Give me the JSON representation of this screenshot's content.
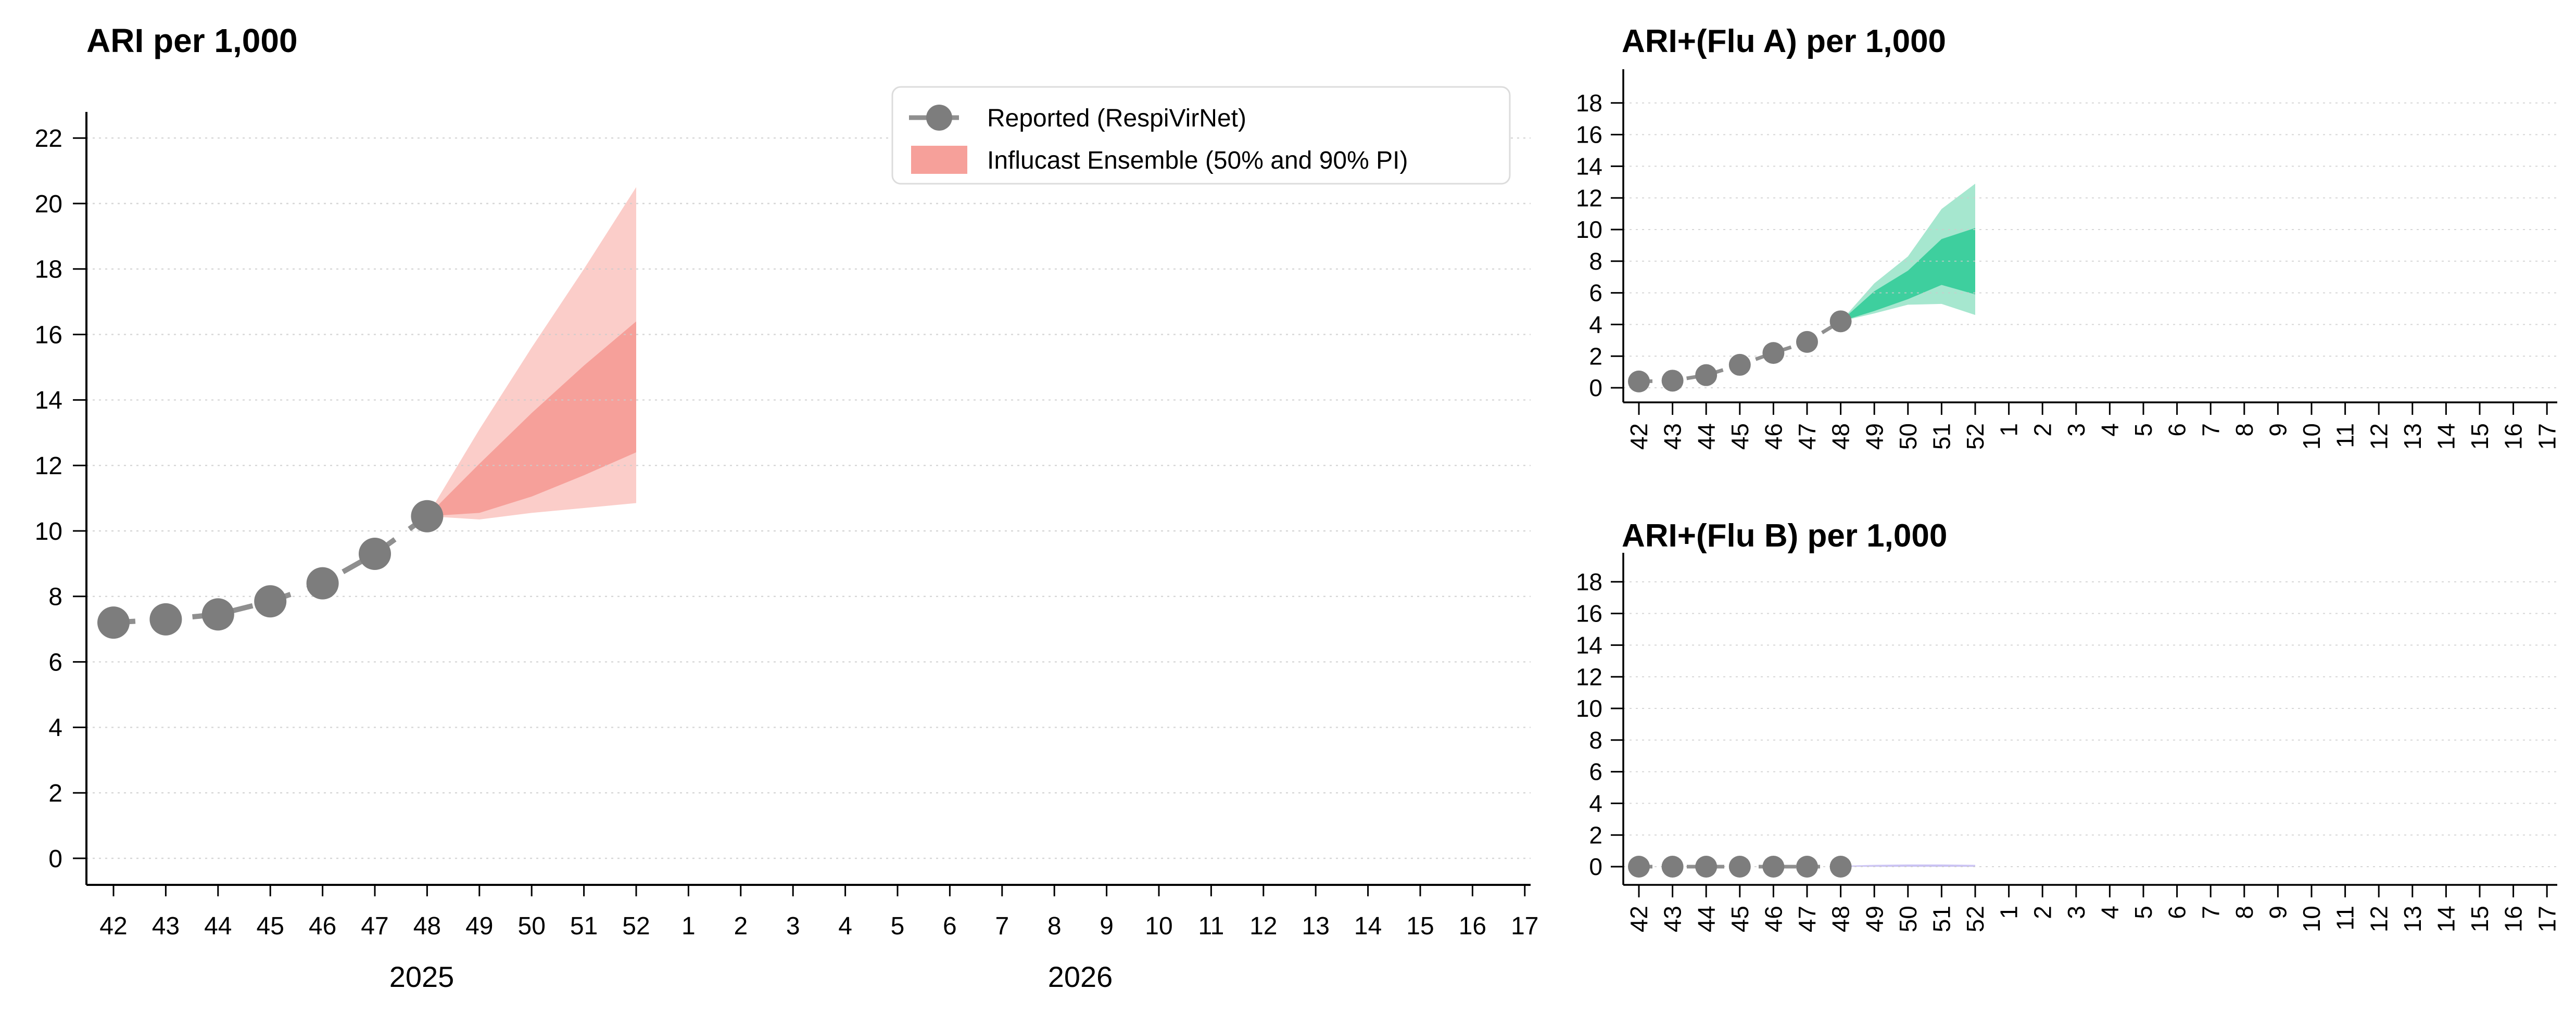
{
  "figure": {
    "background": "#ffffff",
    "axis_color": "#000000",
    "grid_color": "#cccccc",
    "reported_point_color": "#7d7d7d",
    "reported_line_color": "#8f8f8f",
    "legend": {
      "reported_label": "Reported (RespiVirNet)",
      "ensemble_label": "Influcast Ensemble (50% and 90% PI)",
      "border_color": "#dcdcdc",
      "swatch_color": "#f6a09a"
    }
  },
  "chart_data": [
    {
      "type": "line",
      "title": "ARI per 1,000",
      "categories": [
        "42",
        "43",
        "44",
        "45",
        "46",
        "47",
        "48",
        "49",
        "50",
        "51",
        "52",
        "1",
        "2",
        "3",
        "4",
        "5",
        "6",
        "7",
        "8",
        "9",
        "10",
        "11",
        "12",
        "13",
        "14",
        "15",
        "16",
        "17"
      ],
      "ylim": [
        0,
        22
      ],
      "y_tick_step": 2,
      "grid": true,
      "legend_position": "top-right",
      "year_labels": [
        {
          "text": "2025",
          "anchor_week": "48"
        },
        {
          "text": "2026",
          "anchor_week": "9"
        }
      ],
      "reported": {
        "name": "Reported (RespiVirNet)",
        "weeks": [
          "42",
          "43",
          "44",
          "45",
          "46",
          "47",
          "48"
        ],
        "values": [
          7.2,
          7.3,
          7.45,
          7.85,
          8.4,
          9.3,
          10.45
        ]
      },
      "forecast": {
        "name": "Influcast Ensemble",
        "weeks": [
          "48",
          "49",
          "50",
          "51",
          "52"
        ],
        "pi90": {
          "lower": [
            10.45,
            10.35,
            10.55,
            10.7,
            10.85
          ],
          "upper": [
            10.45,
            13.1,
            15.6,
            18.0,
            20.5
          ]
        },
        "pi50": {
          "lower": [
            10.45,
            10.55,
            11.05,
            11.7,
            12.4
          ],
          "upper": [
            10.45,
            12.05,
            13.6,
            15.05,
            16.4
          ]
        }
      },
      "colors": {
        "band50": "#f6a09a",
        "band90": "#fbcdc9"
      }
    },
    {
      "type": "line",
      "title": "ARI+(Flu A) per 1,000",
      "categories": [
        "42",
        "43",
        "44",
        "45",
        "46",
        "47",
        "48",
        "49",
        "50",
        "51",
        "52",
        "1",
        "2",
        "3",
        "4",
        "5",
        "6",
        "7",
        "8",
        "9",
        "10",
        "11",
        "12",
        "13",
        "14",
        "15",
        "16",
        "17"
      ],
      "ylim": [
        0,
        18
      ],
      "y_tick_step": 2,
      "grid": true,
      "x_labels_rotated": true,
      "reported": {
        "name": "Reported (RespiVirNet)",
        "weeks": [
          "42",
          "43",
          "44",
          "45",
          "46",
          "47",
          "48"
        ],
        "values": [
          0.4,
          0.45,
          0.8,
          1.45,
          2.2,
          2.9,
          4.2
        ]
      },
      "forecast": {
        "name": "Influcast Ensemble",
        "weeks": [
          "48",
          "49",
          "50",
          "51",
          "52"
        ],
        "pi90": {
          "lower": [
            4.2,
            4.7,
            5.25,
            5.3,
            4.6
          ],
          "upper": [
            4.2,
            6.6,
            8.3,
            11.3,
            12.9
          ]
        },
        "pi50": {
          "lower": [
            4.2,
            4.85,
            5.6,
            6.5,
            5.9
          ],
          "upper": [
            4.2,
            6.1,
            7.4,
            9.4,
            10.1
          ]
        }
      },
      "colors": {
        "band50": "#3ecf9e",
        "band90": "#a6e7cf"
      }
    },
    {
      "type": "line",
      "title": "ARI+(Flu B) per 1,000",
      "categories": [
        "42",
        "43",
        "44",
        "45",
        "46",
        "47",
        "48",
        "49",
        "50",
        "51",
        "52",
        "1",
        "2",
        "3",
        "4",
        "5",
        "6",
        "7",
        "8",
        "9",
        "10",
        "11",
        "12",
        "13",
        "14",
        "15",
        "16",
        "17"
      ],
      "ylim": [
        0,
        18
      ],
      "y_tick_step": 2,
      "grid": true,
      "x_labels_rotated": true,
      "reported": {
        "name": "Reported (RespiVirNet)",
        "weeks": [
          "42",
          "43",
          "44",
          "45",
          "46",
          "47",
          "48"
        ],
        "values": [
          0,
          0,
          0,
          0,
          0,
          0,
          0
        ]
      },
      "forecast": {
        "name": "Influcast Ensemble",
        "weeks": [
          "48",
          "49",
          "50",
          "51",
          "52"
        ],
        "pi90": {
          "lower": [
            0,
            0,
            0,
            0,
            0
          ],
          "upper": [
            0.06,
            0.12,
            0.15,
            0.15,
            0.12
          ]
        },
        "pi50": {
          "lower": [
            0,
            0,
            0,
            0,
            0
          ],
          "upper": [
            0.03,
            0.07,
            0.09,
            0.09,
            0.07
          ]
        }
      },
      "colors": {
        "band50": "#c4bbf2",
        "band90": "#d8d2f7"
      }
    }
  ]
}
